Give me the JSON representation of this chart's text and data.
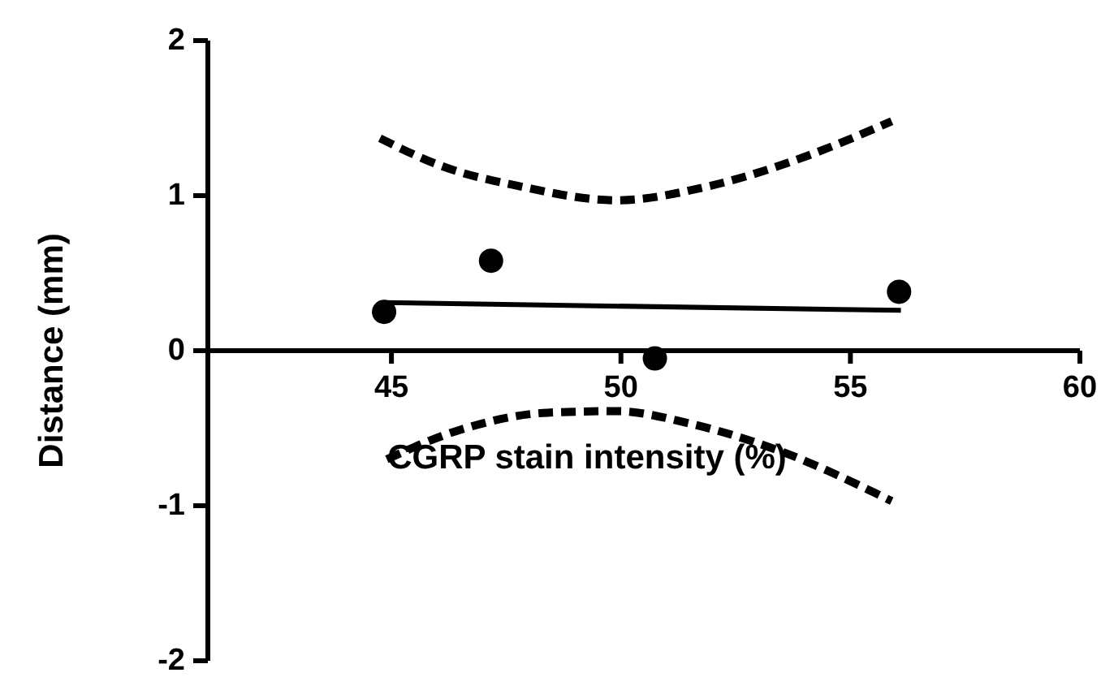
{
  "chart_data": {
    "type": "scatter",
    "xlabel": "CGRP stain intensity (%)",
    "ylabel": "Distance (mm)",
    "xlim": [
      41,
      60
    ],
    "ylim": [
      -2,
      2
    ],
    "xticks": [
      45,
      50,
      55,
      60
    ],
    "yticks": [
      -2,
      -1,
      0,
      1,
      2
    ],
    "grid": false,
    "series": [
      {
        "color": "#000000",
        "marker": "circle",
        "x": [
          44.84,
          47.17,
          50.74,
          56.06
        ],
        "values": [
          0.25,
          0.58,
          -0.05,
          0.38
        ]
      },
      {
        "type": "line",
        "color": "#000000",
        "marker": "none",
        "line_style": "solid",
        "x": [
          44.84,
          56.1
        ],
        "values": [
          0.31,
          0.26
        ]
      },
      {
        "type": "line",
        "color": "#000000",
        "marker": "none",
        "line_style": "dashed",
        "x": [
          44.75,
          46.1,
          47.8,
          49.9,
          51.9,
          54.0,
          55.9
        ],
        "values": [
          1.37,
          1.19,
          1.06,
          0.97,
          1.06,
          1.25,
          1.48
        ]
      },
      {
        "type": "line",
        "color": "#000000",
        "marker": "none",
        "line_style": "dashed",
        "x": [
          44.9,
          46.5,
          48.4,
          49.9,
          51.5,
          53.4,
          55.9
        ],
        "values": [
          -0.7,
          -0.51,
          -0.4,
          -0.39,
          -0.47,
          -0.64,
          -0.97
        ]
      }
    ]
  }
}
